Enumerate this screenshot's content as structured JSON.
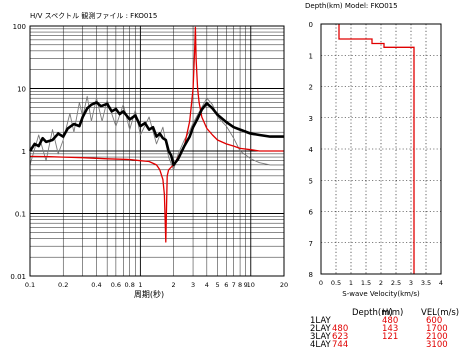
{
  "chart_data": [
    {
      "type": "line",
      "title": "H/V スペクトル 観測ファイル : FKO015",
      "xlabel": "周期(秒)",
      "ylabel": "",
      "xscale": "log",
      "yscale": "log",
      "xlim": [
        0.1,
        20
      ],
      "ylim": [
        0.01,
        100
      ],
      "grid": true,
      "xtick_labels": [
        "0.1",
        "0.2",
        "0.4",
        "0.6",
        "0.8",
        "1",
        "2",
        "3",
        "4",
        "5",
        "6",
        "7",
        "8",
        "9",
        "10",
        "20"
      ],
      "ytick_labels": [
        "100",
        "10",
        "1",
        "0.1",
        "0.01"
      ],
      "series": [
        {
          "color": "#000000",
          "role": "mean observed H/V",
          "x": [
            0.1,
            0.11,
            0.12,
            0.13,
            0.14,
            0.16,
            0.18,
            0.2,
            0.22,
            0.25,
            0.28,
            0.3,
            0.33,
            0.36,
            0.4,
            0.44,
            0.5,
            0.55,
            0.6,
            0.65,
            0.7,
            0.8,
            0.9,
            1.0,
            1.1,
            1.2,
            1.3,
            1.4,
            1.5,
            1.6,
            1.7,
            1.8,
            1.9,
            2.0,
            2.2,
            2.5,
            2.8,
            3.0,
            3.3,
            3.6,
            4.0,
            4.5,
            5.0,
            6.0,
            7.0,
            8.0,
            10.0,
            12.0,
            15.0,
            20.0
          ],
          "y": [
            1.0,
            1.3,
            1.2,
            1.6,
            1.4,
            1.5,
            1.9,
            1.7,
            2.3,
            2.7,
            2.5,
            3.5,
            4.8,
            5.5,
            6.0,
            5.2,
            5.7,
            4.3,
            4.7,
            3.9,
            4.3,
            3.2,
            3.7,
            2.5,
            2.8,
            2.2,
            2.4,
            1.7,
            1.9,
            1.6,
            1.5,
            1.0,
            0.85,
            0.6,
            0.75,
            1.2,
            1.7,
            2.4,
            3.3,
            4.6,
            5.8,
            4.8,
            3.8,
            2.9,
            2.4,
            2.2,
            1.9,
            1.8,
            1.7,
            1.7
          ]
        },
        {
          "color": "#e00000",
          "role": "theoretical H/V",
          "x": [
            0.1,
            0.15,
            0.2,
            0.3,
            0.5,
            0.8,
            1.0,
            1.2,
            1.4,
            1.5,
            1.6,
            1.65,
            1.7,
            1.75,
            1.8,
            1.9,
            2.0,
            2.2,
            2.5,
            2.8,
            3.0,
            3.1,
            3.15,
            3.2,
            3.3,
            3.4,
            3.6,
            4.0,
            4.5,
            5.0,
            6.0,
            7.0,
            8.0,
            10.0,
            12.0,
            15.0,
            20.0
          ],
          "y": [
            0.82,
            0.81,
            0.8,
            0.78,
            0.75,
            0.73,
            0.7,
            0.68,
            0.6,
            0.5,
            0.35,
            0.2,
            0.035,
            0.4,
            0.5,
            0.55,
            0.6,
            0.8,
            1.2,
            3.0,
            10.0,
            40.0,
            95.0,
            30.0,
            10.0,
            6.0,
            3.5,
            2.3,
            1.8,
            1.5,
            1.3,
            1.2,
            1.1,
            1.05,
            1.0,
            1.0,
            1.0
          ]
        },
        {
          "color": "#7a7a7a",
          "role": "observed H/V, individual windows",
          "x": [
            0.1,
            0.12,
            0.14,
            0.16,
            0.18,
            0.2,
            0.23,
            0.25,
            0.28,
            0.3,
            0.33,
            0.36,
            0.4,
            0.45,
            0.5,
            0.6,
            0.7,
            0.8,
            0.9,
            1.0,
            1.2,
            1.4,
            1.6,
            1.8,
            2.0,
            2.2,
            2.5,
            2.8,
            3.0,
            3.3,
            3.6,
            4.0,
            4.5,
            5.0,
            6.0,
            7.0,
            8.0,
            10.0,
            12.0,
            15.0,
            20.0
          ],
          "y": [
            0.6,
            1.8,
            0.7,
            2.2,
            0.9,
            1.5,
            4.0,
            2.0,
            6.0,
            3.5,
            7.5,
            3.0,
            7.0,
            3.0,
            6.5,
            2.5,
            5.5,
            2.2,
            4.5,
            1.8,
            3.5,
            1.3,
            2.4,
            0.8,
            0.5,
            0.9,
            1.5,
            2.1,
            2.8,
            3.8,
            5.0,
            7.0,
            5.5,
            3.5,
            2.5,
            1.6,
            1.0,
            0.75,
            0.65,
            0.6,
            0.6
          ]
        }
      ]
    },
    {
      "type": "line",
      "title": "Depth(km)   Model: FKO015",
      "xlabel": "S-wave Velocity(km/s)",
      "ylabel": "",
      "xlim": [
        0,
        4
      ],
      "ylim": [
        8,
        0
      ],
      "grid": true,
      "xtick_labels": [
        "0",
        "0.5",
        "1",
        "1.5",
        "2",
        "2.5",
        "3",
        "3.5",
        "4"
      ],
      "ytick_labels": [
        "0",
        "1",
        "2",
        "3",
        "4",
        "5",
        "6",
        "7",
        "8"
      ],
      "series": [
        {
          "color": "#e00000",
          "role": "S-wave velocity profile",
          "x": [
            0.6,
            0.6,
            1.7,
            1.7,
            2.1,
            2.1,
            3.1,
            3.1
          ],
          "y": [
            0,
            0.48,
            0.48,
            0.623,
            0.623,
            0.744,
            0.744,
            8
          ]
        }
      ]
    },
    {
      "type": "table",
      "columns": [
        "",
        "Depth(m)",
        "H(m)",
        "VEL(m/s)"
      ],
      "rows": [
        [
          "1LAY",
          "",
          "480",
          "600"
        ],
        [
          "2LAY",
          "480",
          "143",
          "1700"
        ],
        [
          "3LAY",
          "623",
          "121",
          "2100"
        ],
        [
          "4LAY",
          "744",
          "",
          "3100"
        ]
      ]
    }
  ],
  "colors": {
    "text": "#000000",
    "mean_curve": "#000000",
    "theory_curve": "#e00000",
    "window_curves": "#7a7a7a",
    "grid": "#000000",
    "table_values": "#e00000"
  }
}
